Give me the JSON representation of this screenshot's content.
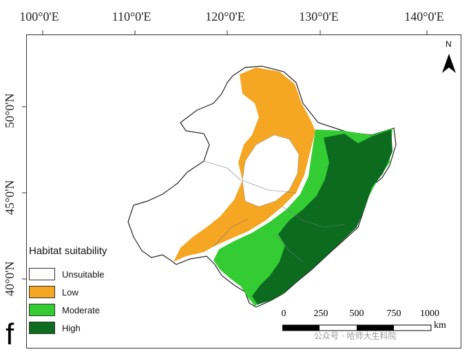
{
  "longitude_labels": [
    "100°0'E",
    "110°0'E",
    "120°0'E",
    "130°0'E",
    "140°0'E"
  ],
  "latitude_labels": [
    "50°0'N",
    "45°0'N",
    "40°0'N"
  ],
  "north_arrow": {
    "label": "N"
  },
  "legend": {
    "title": "Habitat suitability",
    "items": [
      {
        "label": "Unsuitable",
        "color": "#ffffff"
      },
      {
        "label": "Low",
        "color": "#f5a623"
      },
      {
        "label": "Moderate",
        "color": "#33cc33"
      },
      {
        "label": "High",
        "color": "#0d6b1f"
      }
    ]
  },
  "scale_bar": {
    "ticks": [
      "0",
      "250",
      "500",
      "750",
      "1000"
    ],
    "unit": "km"
  },
  "panel_label": "f",
  "watermark": "公众号 · 哈师大生科院"
}
